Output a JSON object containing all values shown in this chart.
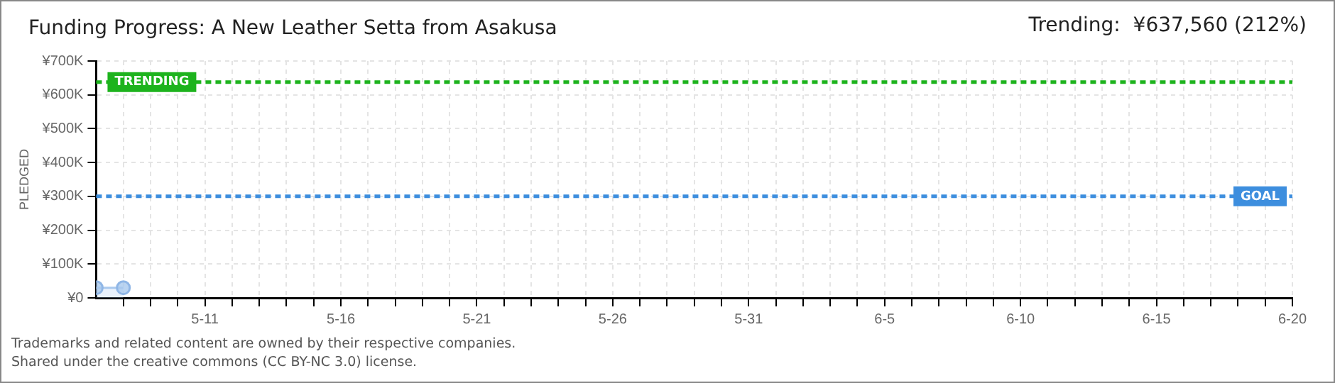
{
  "chart_data": {
    "type": "area",
    "title": "Funding Progress: A New Leather Setta from Asakusa",
    "subtitle": "Trending:  ¥637,560 (212%)",
    "ylabel": "PLEDGED",
    "x": [
      "--05-07",
      "--05-08"
    ],
    "series": [
      {
        "color": "#a9c9ee",
        "values": [
          30000,
          30000
        ]
      }
    ],
    "marker": "circle",
    "grid": true,
    "legend": false,
    "xlim": [
      "--05-07",
      "--06-20"
    ],
    "xticks": [
      {
        "value": "--05-08",
        "label": null
      },
      {
        "value": "--05-09",
        "label": null
      },
      {
        "value": "--05-10",
        "label": null
      },
      {
        "value": "--05-11",
        "label": "5-11"
      },
      {
        "value": "--05-12",
        "label": null
      },
      {
        "value": "--05-13",
        "label": null
      },
      {
        "value": "--05-14",
        "label": null
      },
      {
        "value": "--05-15",
        "label": null
      },
      {
        "value": "--05-16",
        "label": "5-16"
      },
      {
        "value": "--05-17",
        "label": null
      },
      {
        "value": "--05-18",
        "label": null
      },
      {
        "value": "--05-19",
        "label": null
      },
      {
        "value": "--05-20",
        "label": null
      },
      {
        "value": "--05-21",
        "label": "5-21"
      },
      {
        "value": "--05-22",
        "label": null
      },
      {
        "value": "--05-23",
        "label": null
      },
      {
        "value": "--05-24",
        "label": null
      },
      {
        "value": "--05-25",
        "label": null
      },
      {
        "value": "--05-26",
        "label": "5-26"
      },
      {
        "value": "--05-27",
        "label": null
      },
      {
        "value": "--05-28",
        "label": null
      },
      {
        "value": "--05-29",
        "label": null
      },
      {
        "value": "--05-30",
        "label": null
      },
      {
        "value": "--05-31",
        "label": "5-31"
      },
      {
        "value": "--06-01",
        "label": null
      },
      {
        "value": "--06-02",
        "label": null
      },
      {
        "value": "--06-03",
        "label": null
      },
      {
        "value": "--06-04",
        "label": null
      },
      {
        "value": "--06-05",
        "label": "6-5"
      },
      {
        "value": "--06-06",
        "label": null
      },
      {
        "value": "--06-07",
        "label": null
      },
      {
        "value": "--06-08",
        "label": null
      },
      {
        "value": "--06-09",
        "label": null
      },
      {
        "value": "--06-10",
        "label": "6-10"
      },
      {
        "value": "--06-11",
        "label": null
      },
      {
        "value": "--06-12",
        "label": null
      },
      {
        "value": "--06-13",
        "label": null
      },
      {
        "value": "--06-14",
        "label": null
      },
      {
        "value": "--06-15",
        "label": "6-15"
      },
      {
        "value": "--06-16",
        "label": null
      },
      {
        "value": "--06-17",
        "label": null
      },
      {
        "value": "--06-18",
        "label": null
      },
      {
        "value": "--06-19",
        "label": null
      },
      {
        "value": "--06-20",
        "label": "6-20"
      }
    ],
    "ylim": [
      0,
      700000
    ],
    "yticks": [
      {
        "value": 0,
        "label": "¥0"
      },
      {
        "value": 100000,
        "label": "¥100K"
      },
      {
        "value": 200000,
        "label": "¥200K"
      },
      {
        "value": 300000,
        "label": "¥300K"
      },
      {
        "value": 400000,
        "label": "¥400K"
      },
      {
        "value": 500000,
        "label": "¥500K"
      },
      {
        "value": 600000,
        "label": "¥600K"
      },
      {
        "value": 700000,
        "label": "¥700K"
      }
    ],
    "ref_lines": [
      {
        "axis": "y",
        "value": 637560,
        "label": "TRENDING",
        "color": "#1db31d",
        "line_style": "dashed"
      },
      {
        "axis": "y",
        "value": 300000,
        "label": "GOAL",
        "color": "#3d8ede",
        "line_style": "dashed"
      }
    ],
    "annotations": [
      "Trademarks and related content are owned by their respective companies.",
      "Shared under the creative commons (CC BY-NC 3.0) license."
    ]
  }
}
